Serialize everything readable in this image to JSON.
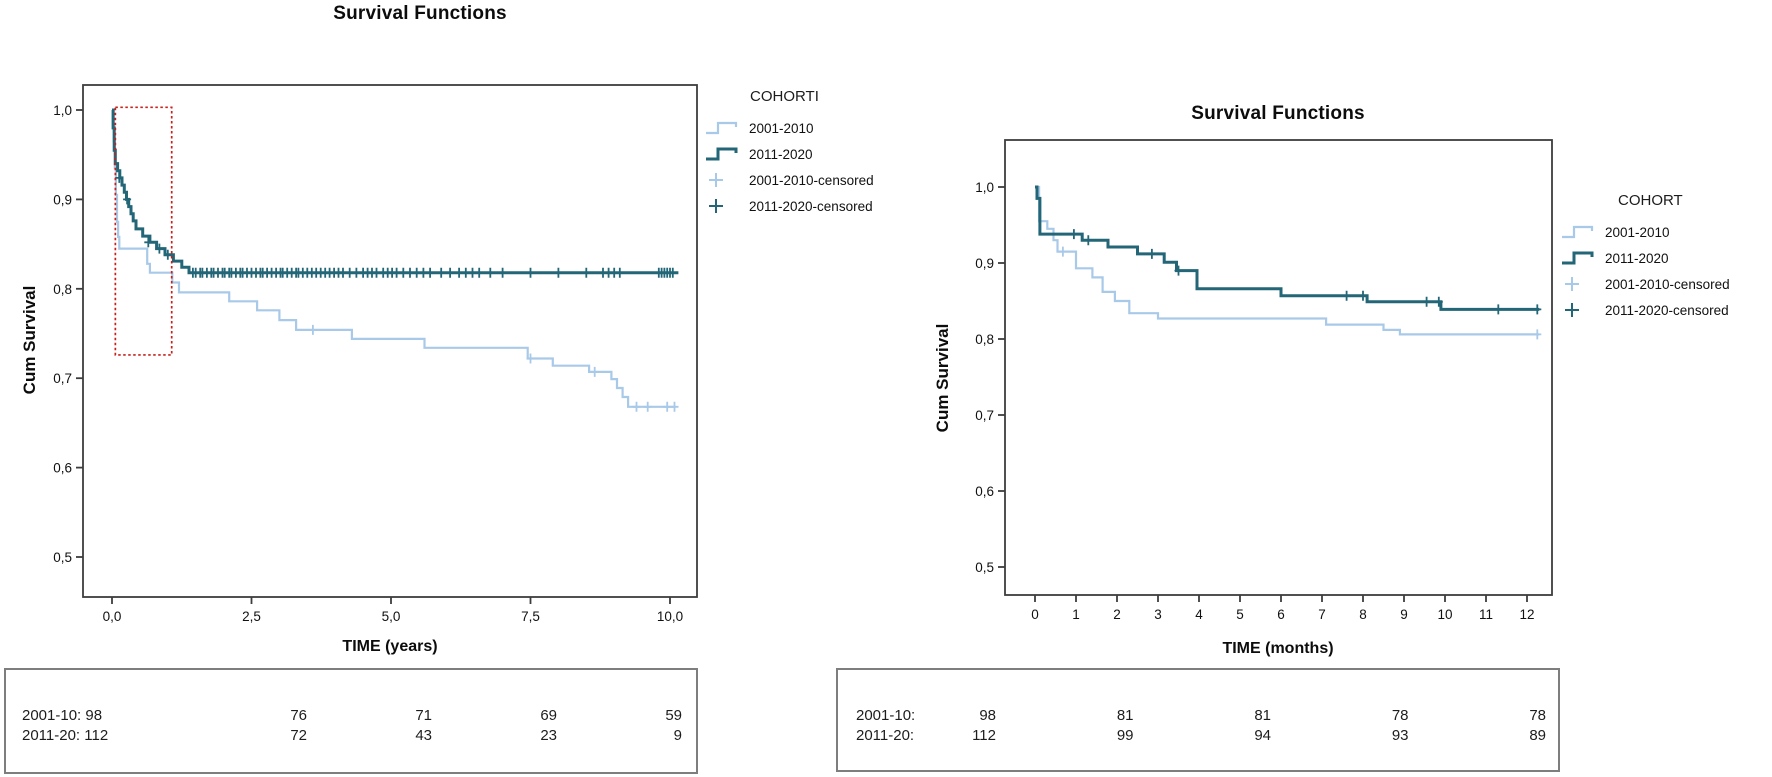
{
  "colors": {
    "cohort_2001_2010": "#a9c9e8",
    "cohort_2011_2020": "#236677",
    "annotation": "#c8201a",
    "plot_border": "#3d3d3d",
    "table_border": "#7e7e7e",
    "text": "#0c0c0c"
  },
  "chart_data": [
    {
      "type": "line",
      "variant": "kaplan-meier-step",
      "title": "Survival Functions",
      "ylabel": "Cum Survival",
      "xlabel": "TIME (years)",
      "xlim": [
        -0.5,
        10.5
      ],
      "ylim": [
        0.455,
        1.03
      ],
      "grid": false,
      "x_ticks": [
        {
          "v": 0,
          "label": "0,0"
        },
        {
          "v": 2.5,
          "label": "2,5"
        },
        {
          "v": 5,
          "label": "5,0"
        },
        {
          "v": 7.5,
          "label": "7,5"
        },
        {
          "v": 10,
          "label": "10,0"
        }
      ],
      "y_ticks": [
        {
          "v": 1.0,
          "label": "1,0"
        },
        {
          "v": 0.9,
          "label": "0,9"
        },
        {
          "v": 0.8,
          "label": "0,8"
        },
        {
          "v": 0.7,
          "label": "0,7"
        },
        {
          "v": 0.6,
          "label": "0,6"
        },
        {
          "v": 0.5,
          "label": "0,5"
        }
      ],
      "legend": {
        "title": "COHORTI",
        "position": "right",
        "entries": [
          {
            "label": "2001-2010",
            "marker": "step",
            "color": "#a9c9e8"
          },
          {
            "label": "2011-2020",
            "marker": "step",
            "color": "#236677"
          },
          {
            "label": "2001-2010-censored",
            "marker": "plus",
            "color": "#a9c9e8"
          },
          {
            "label": "2011-2020-censored",
            "marker": "plus",
            "color": "#236677"
          }
        ]
      },
      "annotation_rect": {
        "x0": 0.06,
        "x1": 1.07,
        "y0": 0.726,
        "y1": 1.003,
        "color": "#c8201a",
        "style": "dashed"
      },
      "series": [
        {
          "name": "2001-2010",
          "color": "#a9c9e8",
          "stroke_width": 2.2,
          "steps": [
            [
              0,
              1.0
            ],
            [
              0.03,
              0.965
            ],
            [
              0.05,
              0.935
            ],
            [
              0.07,
              0.905
            ],
            [
              0.09,
              0.875
            ],
            [
              0.11,
              0.858
            ],
            [
              0.13,
              0.845
            ],
            [
              0.63,
              0.828
            ],
            [
              0.68,
              0.818
            ],
            [
              1.08,
              0.807
            ],
            [
              1.2,
              0.796
            ],
            [
              2.1,
              0.786
            ],
            [
              2.6,
              0.776
            ],
            [
              3.0,
              0.765
            ],
            [
              3.3,
              0.754
            ],
            [
              4.3,
              0.744
            ],
            [
              5.6,
              0.734
            ],
            [
              7.45,
              0.722
            ],
            [
              7.9,
              0.714
            ],
            [
              8.55,
              0.707
            ],
            [
              8.95,
              0.699
            ],
            [
              9.05,
              0.689
            ],
            [
              9.15,
              0.679
            ],
            [
              9.25,
              0.668
            ],
            [
              10.1,
              0.668
            ]
          ],
          "censors": [
            [
              3.6,
              0.754
            ],
            [
              7.5,
              0.722
            ],
            [
              8.65,
              0.707
            ],
            [
              9.4,
              0.668
            ],
            [
              9.6,
              0.668
            ],
            [
              9.95,
              0.668
            ],
            [
              10.08,
              0.668
            ]
          ]
        },
        {
          "name": "2011-2020",
          "color": "#236677",
          "stroke_width": 3,
          "steps": [
            [
              0,
              1.0
            ],
            [
              0.02,
              0.98
            ],
            [
              0.04,
              0.955
            ],
            [
              0.06,
              0.94
            ],
            [
              0.1,
              0.932
            ],
            [
              0.14,
              0.924
            ],
            [
              0.18,
              0.916
            ],
            [
              0.22,
              0.908
            ],
            [
              0.26,
              0.9
            ],
            [
              0.3,
              0.892
            ],
            [
              0.34,
              0.884
            ],
            [
              0.38,
              0.876
            ],
            [
              0.43,
              0.867
            ],
            [
              0.55,
              0.859
            ],
            [
              0.68,
              0.852
            ],
            [
              0.8,
              0.845
            ],
            [
              0.95,
              0.838
            ],
            [
              1.1,
              0.831
            ],
            [
              1.25,
              0.824
            ],
            [
              1.38,
              0.818
            ],
            [
              10.15,
              0.818
            ]
          ],
          "censors": [
            [
              0.13,
              0.924
            ],
            [
              0.27,
              0.9
            ],
            [
              0.65,
              0.852
            ],
            [
              0.85,
              0.845
            ],
            [
              1.0,
              0.838
            ],
            [
              1.45,
              0.818
            ],
            [
              1.5,
              0.818
            ],
            [
              1.58,
              0.818
            ],
            [
              1.62,
              0.818
            ],
            [
              1.7,
              0.818
            ],
            [
              1.78,
              0.818
            ],
            [
              1.82,
              0.818
            ],
            [
              1.9,
              0.818
            ],
            [
              1.98,
              0.818
            ],
            [
              2.02,
              0.818
            ],
            [
              2.1,
              0.818
            ],
            [
              2.14,
              0.818
            ],
            [
              2.22,
              0.818
            ],
            [
              2.3,
              0.818
            ],
            [
              2.34,
              0.818
            ],
            [
              2.42,
              0.818
            ],
            [
              2.5,
              0.818
            ],
            [
              2.58,
              0.818
            ],
            [
              2.66,
              0.818
            ],
            [
              2.7,
              0.818
            ],
            [
              2.78,
              0.818
            ],
            [
              2.86,
              0.818
            ],
            [
              2.94,
              0.818
            ],
            [
              3.02,
              0.818
            ],
            [
              3.06,
              0.818
            ],
            [
              3.14,
              0.818
            ],
            [
              3.22,
              0.818
            ],
            [
              3.3,
              0.818
            ],
            [
              3.34,
              0.818
            ],
            [
              3.42,
              0.818
            ],
            [
              3.5,
              0.818
            ],
            [
              3.58,
              0.818
            ],
            [
              3.66,
              0.818
            ],
            [
              3.74,
              0.818
            ],
            [
              3.82,
              0.818
            ],
            [
              3.9,
              0.818
            ],
            [
              3.98,
              0.818
            ],
            [
              4.06,
              0.818
            ],
            [
              4.14,
              0.818
            ],
            [
              4.26,
              0.818
            ],
            [
              4.38,
              0.818
            ],
            [
              4.5,
              0.818
            ],
            [
              4.58,
              0.818
            ],
            [
              4.66,
              0.818
            ],
            [
              4.74,
              0.818
            ],
            [
              4.86,
              0.818
            ],
            [
              4.94,
              0.818
            ],
            [
              5.02,
              0.818
            ],
            [
              5.1,
              0.818
            ],
            [
              5.22,
              0.818
            ],
            [
              5.34,
              0.818
            ],
            [
              5.46,
              0.818
            ],
            [
              5.58,
              0.818
            ],
            [
              5.7,
              0.818
            ],
            [
              5.9,
              0.818
            ],
            [
              6.06,
              0.818
            ],
            [
              6.22,
              0.818
            ],
            [
              6.34,
              0.818
            ],
            [
              6.46,
              0.818
            ],
            [
              6.58,
              0.818
            ],
            [
              6.78,
              0.818
            ],
            [
              7.0,
              0.818
            ],
            [
              7.5,
              0.818
            ],
            [
              8.0,
              0.818
            ],
            [
              8.5,
              0.818
            ],
            [
              8.8,
              0.818
            ],
            [
              8.9,
              0.818
            ],
            [
              9.0,
              0.818
            ],
            [
              9.1,
              0.818
            ],
            [
              9.8,
              0.818
            ],
            [
              9.85,
              0.818
            ],
            [
              9.9,
              0.818
            ],
            [
              9.95,
              0.818
            ],
            [
              10.0,
              0.818
            ],
            [
              10.05,
              0.818
            ]
          ]
        }
      ],
      "risk_table": {
        "merge_first": true,
        "rows": [
          {
            "label": "2001-10:",
            "values": [
              "98",
              "76",
              "71",
              "69",
              "59"
            ]
          },
          {
            "label": "2011-20:",
            "values": [
              "112",
              "72",
              "43",
              "23",
              "9"
            ]
          }
        ]
      }
    },
    {
      "type": "line",
      "variant": "kaplan-meier-step",
      "title": "Survival Functions",
      "ylabel": "Cum Survival",
      "xlabel": "TIME (months)",
      "xlim": [
        -0.75,
        12.6
      ],
      "ylim": [
        0.46,
        1.06
      ],
      "grid": false,
      "x_ticks": [
        {
          "v": 0,
          "label": "0"
        },
        {
          "v": 1,
          "label": "1"
        },
        {
          "v": 2,
          "label": "2"
        },
        {
          "v": 3,
          "label": "3"
        },
        {
          "v": 4,
          "label": "4"
        },
        {
          "v": 5,
          "label": "5"
        },
        {
          "v": 6,
          "label": "6"
        },
        {
          "v": 7,
          "label": "7"
        },
        {
          "v": 8,
          "label": "8"
        },
        {
          "v": 9,
          "label": "9"
        },
        {
          "v": 10,
          "label": "10"
        },
        {
          "v": 11,
          "label": "11"
        },
        {
          "v": 12,
          "label": "12"
        }
      ],
      "y_ticks": [
        {
          "v": 1.0,
          "label": "1,0"
        },
        {
          "v": 0.9,
          "label": "0,9"
        },
        {
          "v": 0.8,
          "label": "0,8"
        },
        {
          "v": 0.7,
          "label": "0,7"
        },
        {
          "v": 0.6,
          "label": "0,6"
        },
        {
          "v": 0.5,
          "label": "0,5"
        }
      ],
      "legend": {
        "title": "COHORT",
        "position": "right",
        "entries": [
          {
            "label": "2001-2010",
            "marker": "step",
            "color": "#a9c9e8"
          },
          {
            "label": "2011-2020",
            "marker": "step",
            "color": "#236677"
          },
          {
            "label": "2001-2010-censored",
            "marker": "plus",
            "color": "#a9c9e8"
          },
          {
            "label": "2011-2020-censored",
            "marker": "plus",
            "color": "#236677"
          }
        ]
      },
      "annotation_rect": null,
      "series": [
        {
          "name": "2001-2010",
          "color": "#a9c9e8",
          "stroke_width": 2.2,
          "steps": [
            [
              0,
              1.0
            ],
            [
              0.1,
              0.955
            ],
            [
              0.3,
              0.945
            ],
            [
              0.45,
              0.93
            ],
            [
              0.55,
              0.915
            ],
            [
              1.0,
              0.893
            ],
            [
              1.4,
              0.881
            ],
            [
              1.65,
              0.862
            ],
            [
              1.95,
              0.85
            ],
            [
              2.3,
              0.834
            ],
            [
              3.0,
              0.827
            ],
            [
              7.1,
              0.819
            ],
            [
              8.5,
              0.812
            ],
            [
              8.9,
              0.806
            ],
            [
              12.3,
              0.806
            ]
          ],
          "censors": [
            [
              0.68,
              0.915
            ],
            [
              12.25,
              0.806
            ]
          ]
        },
        {
          "name": "2011-2020",
          "color": "#236677",
          "stroke_width": 3,
          "steps": [
            [
              0,
              1.0
            ],
            [
              0.05,
              0.985
            ],
            [
              0.12,
              0.938
            ],
            [
              1.15,
              0.93
            ],
            [
              1.78,
              0.921
            ],
            [
              2.5,
              0.912
            ],
            [
              3.15,
              0.901
            ],
            [
              3.45,
              0.89
            ],
            [
              3.95,
              0.866
            ],
            [
              6.0,
              0.857
            ],
            [
              8.1,
              0.849
            ],
            [
              9.9,
              0.839
            ],
            [
              12.3,
              0.839
            ]
          ],
          "censors": [
            [
              0.95,
              0.938
            ],
            [
              1.3,
              0.93
            ],
            [
              2.85,
              0.912
            ],
            [
              3.5,
              0.89
            ],
            [
              7.6,
              0.857
            ],
            [
              8.0,
              0.857
            ],
            [
              9.55,
              0.849
            ],
            [
              9.85,
              0.849
            ],
            [
              11.3,
              0.839
            ],
            [
              12.25,
              0.839
            ]
          ]
        }
      ],
      "risk_table": {
        "merge_first": false,
        "rows": [
          {
            "label": "2001-10:",
            "values": [
              "98",
              "81",
              "81",
              "78",
              "78"
            ]
          },
          {
            "label": "2011-20:",
            "values": [
              "112",
              "99",
              "94",
              "93",
              "89"
            ]
          }
        ]
      }
    }
  ]
}
